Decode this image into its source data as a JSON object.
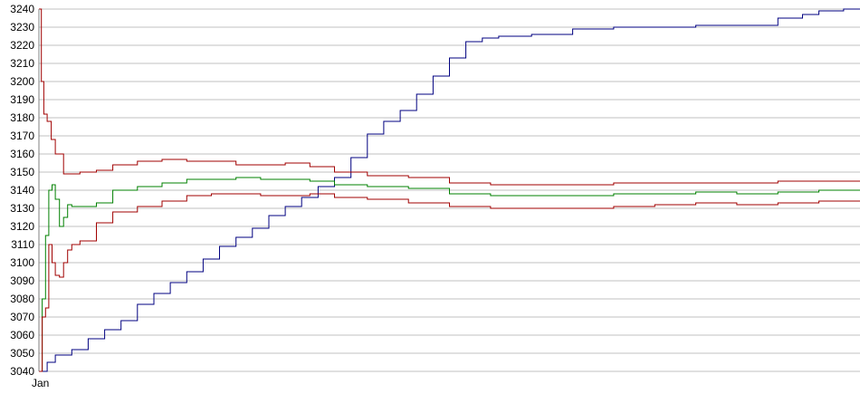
{
  "chart_data": {
    "type": "line",
    "title": "",
    "xlabel": "",
    "ylabel": "",
    "ylim": [
      3040,
      3240
    ],
    "yticks": [
      3040,
      3050,
      3060,
      3070,
      3080,
      3090,
      3100,
      3110,
      3120,
      3130,
      3140,
      3150,
      3160,
      3170,
      3180,
      3190,
      3200,
      3210,
      3220,
      3230,
      3240
    ],
    "grid": true,
    "legend": "none",
    "x_tick_labels_note_visible": "Jan",
    "series": [
      {
        "color": "#000080",
        "x": [
          0,
          0.01,
          0.02,
          0.04,
          0.06,
          0.08,
          0.1,
          0.12,
          0.14,
          0.16,
          0.18,
          0.2,
          0.22,
          0.24,
          0.26,
          0.28,
          0.3,
          0.32,
          0.34,
          0.36,
          0.38,
          0.4,
          0.42,
          0.44,
          0.46,
          0.48,
          0.5,
          0.52,
          0.54,
          0.56,
          0.6,
          0.65,
          0.7,
          0.75,
          0.8,
          0.85,
          0.88,
          0.9,
          0.93,
          0.95,
          0.98,
          1.0
        ],
        "values": [
          3040,
          3045,
          3049,
          3052,
          3058,
          3063,
          3068,
          3077,
          3083,
          3089,
          3095,
          3102,
          3109,
          3114,
          3119,
          3126,
          3131,
          3136,
          3142,
          3147,
          3158,
          3171,
          3178,
          3184,
          3193,
          3203,
          3213,
          3222,
          3224,
          3225,
          3226,
          3229,
          3230,
          3230,
          3231,
          3231,
          3231,
          3235,
          3237,
          3239,
          3240,
          3240
        ]
      },
      {
        "color": "#a00000",
        "x": [
          0,
          0.003,
          0.006,
          0.01,
          0.015,
          0.02,
          0.03,
          0.05,
          0.07,
          0.09,
          0.12,
          0.15,
          0.18,
          0.21,
          0.24,
          0.27,
          0.3,
          0.33,
          0.36,
          0.4,
          0.45,
          0.5,
          0.55,
          0.6,
          0.65,
          0.7,
          0.75,
          0.8,
          0.85,
          0.9,
          0.95,
          1.0
        ],
        "values": [
          3240,
          3200,
          3182,
          3178,
          3168,
          3160,
          3149,
          3150,
          3151,
          3154,
          3156,
          3157,
          3156,
          3156,
          3154,
          3154,
          3155,
          3153,
          3150,
          3148,
          3147,
          3144,
          3143,
          3143,
          3143,
          3144,
          3144,
          3144,
          3144,
          3145,
          3145,
          3145
        ]
      },
      {
        "color": "#008000",
        "x": [
          0,
          0.004,
          0.008,
          0.012,
          0.016,
          0.02,
          0.025,
          0.03,
          0.035,
          0.04,
          0.05,
          0.07,
          0.09,
          0.12,
          0.15,
          0.18,
          0.21,
          0.24,
          0.27,
          0.3,
          0.33,
          0.36,
          0.4,
          0.45,
          0.5,
          0.55,
          0.6,
          0.65,
          0.7,
          0.75,
          0.8,
          0.85,
          0.9,
          0.95,
          1.0
        ],
        "values": [
          3040,
          3080,
          3115,
          3140,
          3143,
          3135,
          3120,
          3125,
          3132,
          3131,
          3131,
          3133,
          3140,
          3142,
          3144,
          3146,
          3146,
          3147,
          3146,
          3146,
          3145,
          3143,
          3142,
          3141,
          3138,
          3137,
          3137,
          3137,
          3138,
          3138,
          3139,
          3138,
          3139,
          3140,
          3140
        ]
      },
      {
        "color": "#a00000",
        "x": [
          0,
          0.004,
          0.008,
          0.012,
          0.016,
          0.02,
          0.025,
          0.03,
          0.035,
          0.04,
          0.05,
          0.07,
          0.09,
          0.12,
          0.15,
          0.18,
          0.21,
          0.24,
          0.27,
          0.3,
          0.33,
          0.36,
          0.4,
          0.45,
          0.5,
          0.55,
          0.6,
          0.65,
          0.7,
          0.75,
          0.8,
          0.85,
          0.9,
          0.95,
          1.0
        ],
        "values": [
          3040,
          3070,
          3075,
          3110,
          3100,
          3093,
          3092,
          3100,
          3107,
          3110,
          3112,
          3122,
          3128,
          3131,
          3134,
          3137,
          3138,
          3138,
          3137,
          3137,
          3138,
          3136,
          3135,
          3133,
          3131,
          3130,
          3130,
          3130,
          3131,
          3132,
          3133,
          3132,
          3133,
          3134,
          3134
        ]
      }
    ]
  },
  "x_axis": {
    "first_label": "Jan"
  }
}
